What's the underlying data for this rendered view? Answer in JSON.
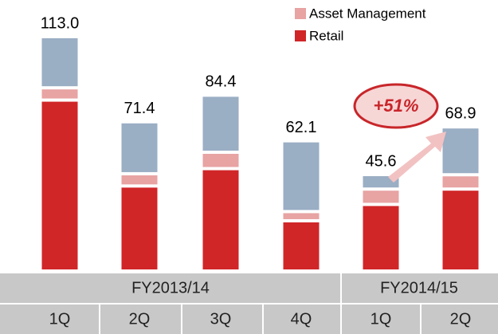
{
  "chart_data": {
    "type": "stacked_bar",
    "categories": [
      "1Q",
      "2Q",
      "3Q",
      "4Q",
      "1Q",
      "2Q"
    ],
    "groups": [
      "FY2013/14",
      "FY2014/15"
    ],
    "series": [
      {
        "name": "Retail",
        "color": "#d02628",
        "values": [
          82,
          40,
          48.5,
          23,
          31,
          38.5
        ]
      },
      {
        "name": "Asset Management",
        "color": "#e8a3a3",
        "values": [
          6,
          6,
          8,
          4.5,
          7.5,
          7
        ]
      },
      {
        "color": "#9aaec4",
        "values": [
          25,
          25.4,
          27.9,
          34.6,
          7.1,
          23.4
        ]
      }
    ],
    "totals": [
      113,
      71.4,
      84.4,
      62.1,
      45.6,
      68.9
    ],
    "total_labels": [
      "113.0",
      "71.4",
      "84.4",
      "62.1",
      "45.6",
      "68.9"
    ],
    "annotation": "+51%"
  }
}
